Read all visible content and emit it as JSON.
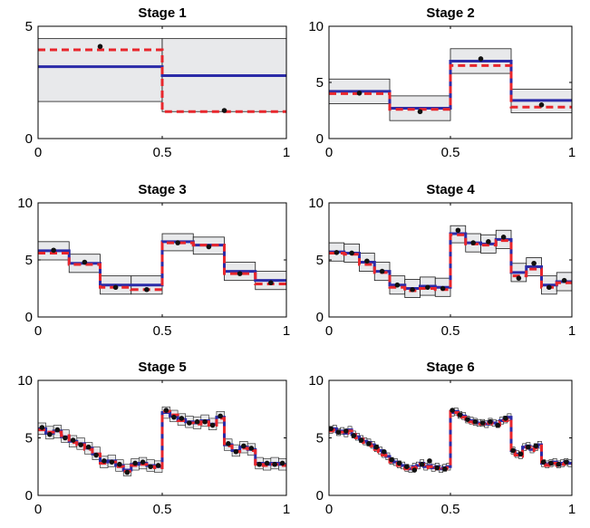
{
  "chart_data": [
    {
      "type": "line",
      "title": "Stage 1",
      "xlim": [
        0,
        1
      ],
      "ylim": [
        0,
        5
      ],
      "xticks": [
        "0",
        "0.5",
        "1"
      ],
      "yticks": [
        "0",
        "5"
      ],
      "bins": 2,
      "estimate": [
        3.2,
        2.8
      ],
      "truth": [
        3.95,
        1.2
      ],
      "upper": [
        4.45,
        4.45
      ],
      "lower": [
        1.65,
        1.2
      ],
      "points": [
        [
          0.25,
          4.1
        ],
        [
          0.75,
          1.25
        ]
      ]
    },
    {
      "type": "line",
      "title": "Stage 2",
      "xlim": [
        0,
        1
      ],
      "ylim": [
        0,
        10
      ],
      "xticks": [
        "0",
        "0.5",
        "1"
      ],
      "yticks": [
        "0",
        "5",
        "10"
      ],
      "bins": 4,
      "estimate": [
        4.2,
        2.7,
        6.9,
        3.4
      ],
      "truth": [
        4.0,
        2.6,
        6.5,
        2.8
      ],
      "upper": [
        5.3,
        3.8,
        8.0,
        4.4
      ],
      "lower": [
        3.1,
        1.6,
        5.8,
        2.3
      ],
      "points": [
        [
          0.125,
          4.05
        ],
        [
          0.375,
          2.4
        ],
        [
          0.625,
          7.1
        ],
        [
          0.875,
          3.0
        ]
      ]
    },
    {
      "type": "line",
      "title": "Stage 3",
      "xlim": [
        0,
        1
      ],
      "ylim": [
        0,
        10
      ],
      "xticks": [
        "0",
        "0.5",
        "1"
      ],
      "yticks": [
        "0",
        "5",
        "10"
      ],
      "bins": 8,
      "estimate": [
        5.8,
        4.7,
        2.8,
        2.8,
        6.6,
        6.3,
        4.0,
        3.2
      ],
      "truth": [
        5.6,
        4.6,
        2.6,
        2.4,
        6.5,
        6.3,
        3.8,
        2.9
      ],
      "upper": [
        6.6,
        5.5,
        3.6,
        3.6,
        7.3,
        7.0,
        4.8,
        4.0
      ],
      "lower": [
        5.0,
        3.9,
        2.0,
        2.0,
        5.8,
        5.5,
        3.2,
        2.4
      ],
      "points": [
        [
          0.0625,
          5.85
        ],
        [
          0.1875,
          4.8
        ],
        [
          0.3125,
          2.6
        ],
        [
          0.4375,
          2.4
        ],
        [
          0.5625,
          6.5
        ],
        [
          0.6875,
          6.15
        ],
        [
          0.8125,
          3.8
        ],
        [
          0.9375,
          3.0
        ]
      ]
    },
    {
      "type": "line",
      "title": "Stage 4",
      "xlim": [
        0,
        1
      ],
      "ylim": [
        0,
        10
      ],
      "xticks": [
        "0",
        "0.5",
        "1"
      ],
      "yticks": [
        "0",
        "5",
        "10"
      ],
      "bins": 16,
      "estimate": [
        5.7,
        5.6,
        4.8,
        4.0,
        2.8,
        2.5,
        2.7,
        2.6,
        7.3,
        6.5,
        6.4,
        6.8,
        3.9,
        4.4,
        2.8,
        3.1
      ],
      "truth": [
        5.6,
        5.5,
        4.6,
        3.9,
        2.6,
        2.3,
        2.5,
        2.4,
        7.2,
        6.4,
        6.3,
        6.7,
        3.6,
        4.2,
        2.6,
        3.0
      ],
      "upper": [
        6.5,
        6.4,
        5.6,
        4.8,
        3.6,
        3.3,
        3.5,
        3.4,
        8.0,
        7.3,
        7.2,
        7.6,
        4.7,
        5.2,
        3.6,
        3.9
      ],
      "lower": [
        4.9,
        4.8,
        4.0,
        3.2,
        2.0,
        1.7,
        1.9,
        1.8,
        6.5,
        5.7,
        5.6,
        6.0,
        3.1,
        3.6,
        2.0,
        2.3
      ],
      "points": [
        [
          0.03125,
          5.65
        ],
        [
          0.09375,
          5.6
        ],
        [
          0.15625,
          4.9
        ],
        [
          0.21875,
          4.0
        ],
        [
          0.28125,
          2.8
        ],
        [
          0.34375,
          2.4
        ],
        [
          0.40625,
          2.6
        ],
        [
          0.46875,
          2.5
        ],
        [
          0.53125,
          7.6
        ],
        [
          0.59375,
          6.5
        ],
        [
          0.65625,
          6.6
        ],
        [
          0.71875,
          7.0
        ],
        [
          0.78125,
          3.4
        ],
        [
          0.84375,
          4.7
        ],
        [
          0.90625,
          2.6
        ],
        [
          0.96875,
          3.2
        ]
      ]
    },
    {
      "type": "line",
      "title": "Stage 5",
      "xlim": [
        0,
        1
      ],
      "ylim": [
        0,
        10
      ],
      "xticks": [
        "0",
        "0.5",
        "1"
      ],
      "yticks": [
        "0",
        "5",
        "10"
      ],
      "bins": 32,
      "estimate": [
        5.8,
        5.4,
        5.6,
        5.1,
        4.7,
        4.5,
        4.1,
        3.6,
        2.9,
        3.0,
        2.6,
        2.2,
        2.7,
        2.8,
        2.6,
        2.5,
        7.2,
        6.9,
        6.6,
        6.4,
        6.3,
        6.5,
        6.2,
        6.8,
        4.4,
        3.9,
        4.2,
        4.0,
        2.8,
        2.7,
        2.8,
        2.7
      ],
      "truth": [
        5.7,
        5.5,
        5.5,
        5.2,
        4.6,
        4.4,
        4.0,
        3.6,
        2.8,
        2.9,
        2.5,
        2.1,
        2.6,
        2.7,
        2.5,
        2.4,
        7.3,
        7.0,
        6.5,
        6.3,
        6.2,
        6.4,
        6.1,
        6.7,
        4.3,
        3.8,
        4.1,
        3.9,
        2.7,
        2.6,
        2.7,
        2.6
      ],
      "upper": [
        6.3,
        6.0,
        6.1,
        5.7,
        5.2,
        5.0,
        4.6,
        4.2,
        3.4,
        3.5,
        3.1,
        2.7,
        3.2,
        3.3,
        3.1,
        3.0,
        7.7,
        7.4,
        7.1,
        6.9,
        6.8,
        7.0,
        6.7,
        7.3,
        4.9,
        4.4,
        4.7,
        4.5,
        3.3,
        3.2,
        3.3,
        3.2
      ],
      "lower": [
        5.3,
        4.9,
        5.0,
        4.6,
        4.2,
        4.0,
        3.6,
        3.1,
        2.4,
        2.5,
        2.1,
        1.7,
        2.2,
        2.3,
        2.1,
        2.0,
        6.7,
        6.4,
        6.1,
        5.9,
        5.8,
        6.0,
        5.7,
        6.3,
        3.9,
        3.4,
        3.7,
        3.5,
        2.3,
        2.2,
        2.3,
        2.2
      ],
      "points": [
        [
          0.016,
          5.9
        ],
        [
          0.047,
          5.3
        ],
        [
          0.078,
          5.7
        ],
        [
          0.109,
          5.0
        ],
        [
          0.141,
          4.8
        ],
        [
          0.172,
          4.4
        ],
        [
          0.203,
          4.2
        ],
        [
          0.234,
          3.5
        ],
        [
          0.266,
          3.0
        ],
        [
          0.297,
          2.9
        ],
        [
          0.328,
          2.7
        ],
        [
          0.359,
          2.0
        ],
        [
          0.391,
          2.8
        ],
        [
          0.422,
          2.9
        ],
        [
          0.453,
          2.5
        ],
        [
          0.484,
          2.6
        ],
        [
          0.516,
          7.4
        ],
        [
          0.547,
          6.8
        ],
        [
          0.578,
          6.7
        ],
        [
          0.609,
          6.3
        ],
        [
          0.641,
          6.4
        ],
        [
          0.672,
          6.4
        ],
        [
          0.703,
          6.1
        ],
        [
          0.734,
          6.9
        ],
        [
          0.766,
          4.5
        ],
        [
          0.797,
          3.8
        ],
        [
          0.828,
          4.3
        ],
        [
          0.859,
          4.1
        ],
        [
          0.891,
          2.7
        ],
        [
          0.922,
          2.8
        ],
        [
          0.953,
          2.7
        ],
        [
          0.984,
          2.8
        ]
      ]
    },
    {
      "type": "line",
      "title": "Stage 6",
      "xlim": [
        0,
        1
      ],
      "ylim": [
        0,
        10
      ],
      "xticks": [
        "0",
        "0.5",
        "1"
      ],
      "yticks": [
        "0",
        "5",
        "10"
      ],
      "bins": 64,
      "estimate": [
        5.7,
        5.8,
        5.5,
        5.6,
        5.4,
        5.7,
        5.3,
        5.1,
        4.9,
        4.7,
        4.6,
        4.4,
        4.1,
        3.9,
        3.6,
        3.4,
        3.0,
        2.9,
        2.7,
        2.6,
        2.4,
        2.3,
        2.5,
        2.6,
        2.8,
        2.5,
        2.6,
        2.4,
        2.5,
        2.3,
        2.4,
        2.5,
        7.2,
        7.3,
        7.0,
        6.9,
        6.6,
        6.5,
        6.4,
        6.3,
        6.3,
        6.2,
        6.4,
        6.3,
        6.2,
        6.5,
        6.6,
        6.8,
        3.9,
        3.6,
        3.5,
        4.2,
        4.3,
        4.0,
        4.2,
        4.4,
        2.8,
        2.7,
        2.8,
        2.9,
        2.7,
        2.8,
        2.9,
        2.8
      ],
      "truth": [
        5.6,
        5.7,
        5.5,
        5.5,
        5.4,
        5.6,
        5.3,
        5.0,
        4.9,
        4.6,
        4.5,
        4.3,
        4.0,
        3.8,
        3.5,
        3.3,
        2.9,
        2.8,
        2.6,
        2.5,
        2.3,
        2.2,
        2.4,
        2.5,
        2.7,
        2.4,
        2.5,
        2.3,
        2.4,
        2.2,
        2.3,
        2.4,
        7.3,
        7.2,
        7.0,
        6.8,
        6.5,
        6.4,
        6.3,
        6.2,
        6.2,
        6.1,
        6.3,
        6.2,
        6.1,
        6.4,
        6.5,
        6.7,
        3.8,
        3.5,
        3.4,
        4.1,
        4.2,
        3.9,
        4.1,
        4.3,
        2.7,
        2.6,
        2.7,
        2.8,
        2.6,
        2.7,
        2.8,
        2.7
      ],
      "upper": [
        6.0,
        6.1,
        5.8,
        5.9,
        5.7,
        6.0,
        5.6,
        5.4,
        5.2,
        5.0,
        4.9,
        4.7,
        4.4,
        4.2,
        3.9,
        3.7,
        3.3,
        3.2,
        3.0,
        2.9,
        2.7,
        2.6,
        2.8,
        2.9,
        3.1,
        2.8,
        2.9,
        2.7,
        2.8,
        2.6,
        2.7,
        2.8,
        7.5,
        7.6,
        7.3,
        7.2,
        6.9,
        6.8,
        6.7,
        6.6,
        6.6,
        6.5,
        6.7,
        6.6,
        6.5,
        6.8,
        6.9,
        7.1,
        4.2,
        3.9,
        3.8,
        4.5,
        4.6,
        4.3,
        4.5,
        4.7,
        3.1,
        3.0,
        3.1,
        3.2,
        3.0,
        3.1,
        3.2,
        3.1
      ],
      "lower": [
        5.4,
        5.5,
        5.2,
        5.3,
        5.1,
        5.4,
        5.0,
        4.8,
        4.6,
        4.4,
        4.3,
        4.1,
        3.8,
        3.6,
        3.3,
        3.1,
        2.7,
        2.6,
        2.4,
        2.3,
        2.1,
        2.0,
        2.2,
        2.3,
        2.5,
        2.2,
        2.3,
        2.1,
        2.2,
        2.0,
        2.1,
        2.2,
        6.9,
        7.0,
        6.7,
        6.6,
        6.3,
        6.2,
        6.1,
        6.0,
        6.0,
        5.9,
        6.1,
        6.0,
        5.9,
        6.2,
        6.3,
        6.5,
        3.6,
        3.3,
        3.2,
        3.9,
        4.0,
        3.7,
        3.9,
        4.1,
        2.5,
        2.4,
        2.5,
        2.6,
        2.4,
        2.5,
        2.6,
        2.5
      ],
      "points": [
        [
          0.008,
          5.8
        ],
        [
          0.039,
          5.5
        ],
        [
          0.07,
          5.6
        ],
        [
          0.102,
          5.2
        ],
        [
          0.133,
          4.8
        ],
        [
          0.164,
          4.5
        ],
        [
          0.195,
          4.2
        ],
        [
          0.227,
          3.8
        ],
        [
          0.258,
          3.1
        ],
        [
          0.289,
          2.8
        ],
        [
          0.32,
          2.5
        ],
        [
          0.352,
          2.2
        ],
        [
          0.383,
          2.7
        ],
        [
          0.414,
          3.0
        ],
        [
          0.445,
          2.4
        ],
        [
          0.477,
          2.3
        ],
        [
          0.508,
          7.4
        ],
        [
          0.539,
          7.0
        ],
        [
          0.57,
          6.6
        ],
        [
          0.602,
          6.4
        ],
        [
          0.633,
          6.3
        ],
        [
          0.664,
          6.4
        ],
        [
          0.695,
          6.1
        ],
        [
          0.727,
          6.7
        ],
        [
          0.758,
          3.9
        ],
        [
          0.789,
          3.6
        ],
        [
          0.82,
          4.2
        ],
        [
          0.852,
          4.3
        ],
        [
          0.883,
          2.9
        ],
        [
          0.914,
          2.8
        ],
        [
          0.945,
          2.7
        ],
        [
          0.977,
          2.9
        ]
      ]
    }
  ]
}
